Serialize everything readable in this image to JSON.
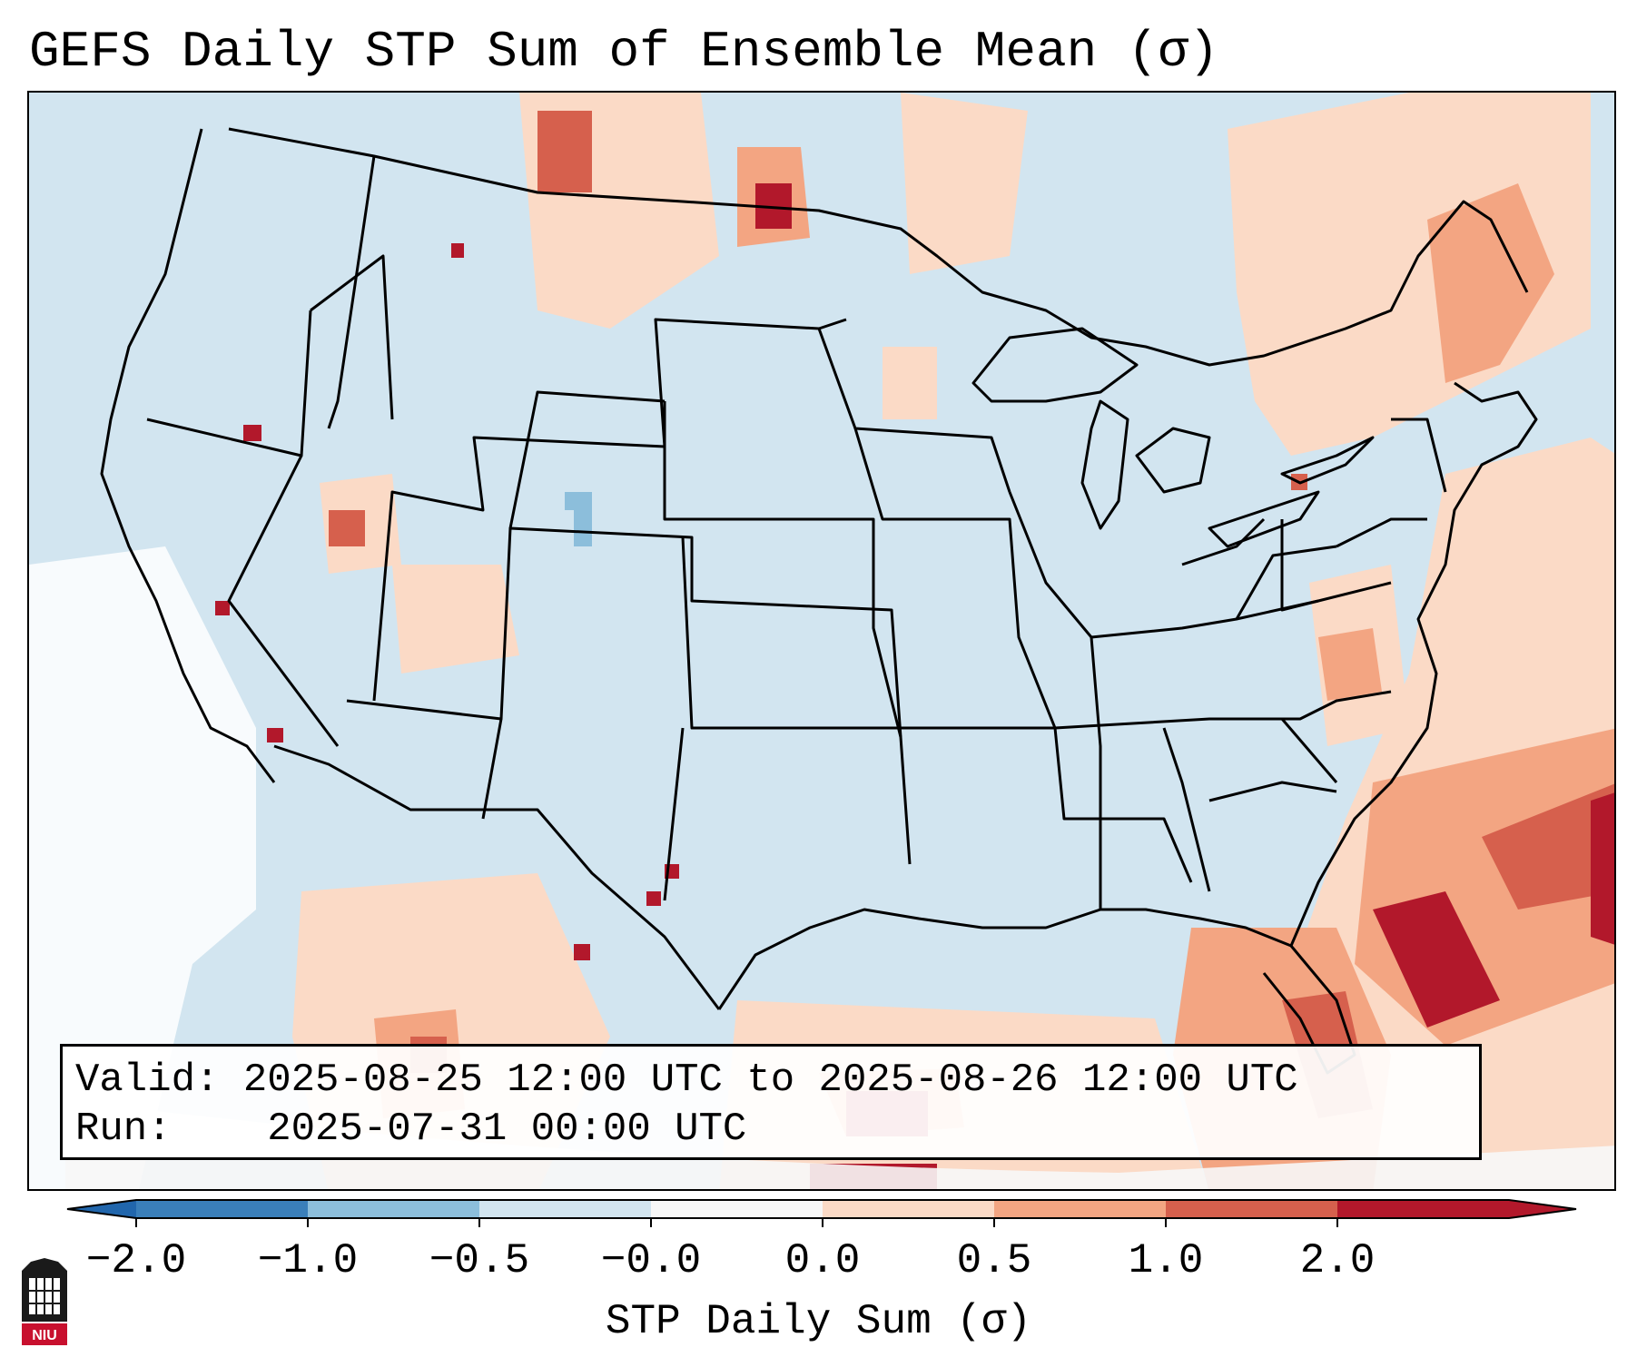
{
  "title": "GEFS Daily STP Sum of Ensemble Mean (σ)",
  "info": {
    "valid_label": "Valid:",
    "valid_value": "2025-08-25 12:00 UTC to 2025-08-26 12:00 UTC",
    "run_label": "Run:",
    "run_value": "2025-07-31 00:00 UTC"
  },
  "colorbar": {
    "label": "STP Daily Sum (σ)",
    "ticks": [
      "−2.0",
      "−1.0",
      "−0.5",
      "−0.0",
      "0.0",
      "0.5",
      "1.0",
      "2.0"
    ],
    "colors": [
      "#3a7fba",
      "#8cbedb",
      "#d2e5f0",
      "#f7f7f7",
      "#fbdac6",
      "#f3a582",
      "#d6604d",
      "#b2182b"
    ],
    "extend_low_color": "#2166ac",
    "extend_high_color": "#b2182b"
  },
  "map": {
    "projection": "Lambert Conformal, CONUS",
    "background_class": "-0.5 to -0.0",
    "features": [
      "coastlines",
      "state borders",
      "country borders"
    ]
  },
  "logo": {
    "text": "NIU",
    "icon": "niu-logo-icon"
  }
}
